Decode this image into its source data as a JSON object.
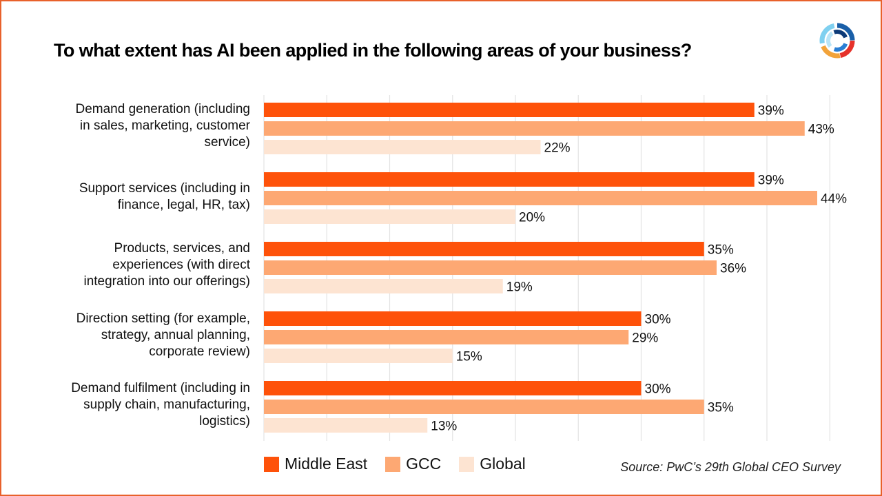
{
  "title": "To what extent has AI been applied in the following areas of your business?",
  "source": "Source: PwC’s 29th Global CEO Survey",
  "colors": {
    "border": "#e8612b",
    "middle_east": "#fe520a",
    "gcc": "#fda873",
    "global": "#fde4d2",
    "grid": "#e3e3e3"
  },
  "logo_icon": "pwc-circular-logo-icon",
  "chart_data": {
    "type": "bar",
    "orientation": "horizontal",
    "title": "To what extent has AI been applied in the following areas of your business?",
    "categories": [
      "Demand generation (including in sales, marketing, customer service)",
      "Support services (including in finance, legal, HR, tax)",
      "Products, services, and experiences (with direct integration into our offerings)",
      "Direction setting (for example, strategy, annual planning, corporate review)",
      "Demand fulfilment (including in supply chain, manufacturing, logistics)"
    ],
    "category_lines": [
      [
        "Demand generation (including",
        "in sales, marketing, customer",
        "service)"
      ],
      [
        "Support services (including in",
        "finance, legal, HR, tax)"
      ],
      [
        "Products, services, and",
        "experiences (with direct",
        "integration into our offerings)"
      ],
      [
        "Direction setting (for example,",
        "strategy, annual planning,",
        "corporate review)"
      ],
      [
        "Demand fulfilment (including in",
        "supply chain, manufacturing,",
        "logistics)"
      ]
    ],
    "series": [
      {
        "name": "Middle East",
        "values": [
          39,
          39,
          35,
          30,
          30
        ],
        "color": "#fe520a"
      },
      {
        "name": "GCC",
        "values": [
          43,
          44,
          36,
          29,
          35
        ],
        "color": "#fda873"
      },
      {
        "name": "Global",
        "values": [
          22,
          20,
          19,
          15,
          13
        ],
        "color": "#fde4d2"
      }
    ],
    "value_suffix": "%",
    "xlim": [
      0,
      45
    ],
    "grid": true,
    "grid_step": 5,
    "legend_position": "bottom-left"
  }
}
